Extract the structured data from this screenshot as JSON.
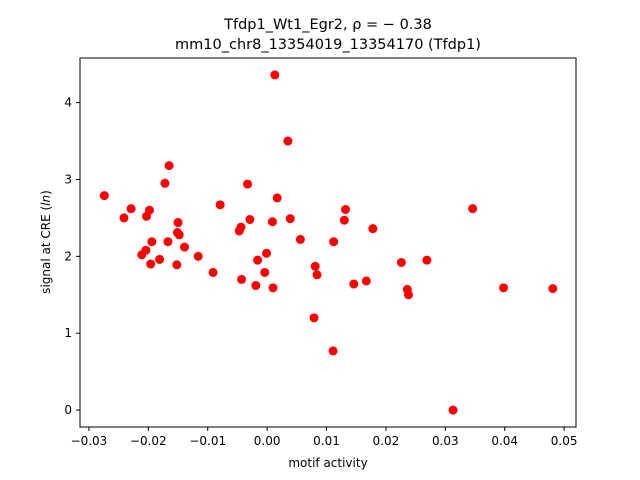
{
  "chart_data": {
    "type": "scatter",
    "title_line1": "Tfdp1_Wt1_Egr2, ρ = − 0.38",
    "title_line2": "mm10_chr8_13354019_13354170 (Tfdp1)",
    "xlabel": "motif activity",
    "ylabel_prefix": "signal at CRE (",
    "ylabel_italic": "ln",
    "ylabel_suffix": ")",
    "xlim": [
      -0.0315,
      0.052
    ],
    "ylim": [
      -0.22,
      4.58
    ],
    "xticks": [
      -0.03,
      -0.02,
      -0.01,
      0.0,
      0.01,
      0.02,
      0.03,
      0.04,
      0.05
    ],
    "xtick_labels": [
      "−0.03",
      "−0.02",
      "−0.01",
      "0.00",
      "0.01",
      "0.02",
      "0.03",
      "0.04",
      "0.05"
    ],
    "yticks": [
      0,
      1,
      2,
      3,
      4
    ],
    "ytick_labels": [
      "0",
      "1",
      "2",
      "3",
      "4"
    ],
    "grid": false,
    "marker_color": "#ff0000",
    "points": [
      {
        "x": -0.0274,
        "y": 2.79
      },
      {
        "x": -0.0241,
        "y": 2.5
      },
      {
        "x": -0.0229,
        "y": 2.62
      },
      {
        "x": -0.0211,
        "y": 2.02
      },
      {
        "x": -0.0204,
        "y": 2.08
      },
      {
        "x": -0.0203,
        "y": 2.52
      },
      {
        "x": -0.0198,
        "y": 2.6
      },
      {
        "x": -0.0196,
        "y": 1.9
      },
      {
        "x": -0.0194,
        "y": 2.19
      },
      {
        "x": -0.0181,
        "y": 1.96
      },
      {
        "x": -0.0172,
        "y": 2.95
      },
      {
        "x": -0.0167,
        "y": 2.19
      },
      {
        "x": -0.0165,
        "y": 3.18
      },
      {
        "x": -0.0152,
        "y": 1.89
      },
      {
        "x": -0.0151,
        "y": 2.31
      },
      {
        "x": -0.015,
        "y": 2.44
      },
      {
        "x": -0.0148,
        "y": 2.28
      },
      {
        "x": -0.0139,
        "y": 2.12
      },
      {
        "x": -0.0116,
        "y": 2.0
      },
      {
        "x": -0.0091,
        "y": 1.79
      },
      {
        "x": -0.0079,
        "y": 2.67
      },
      {
        "x": -0.0047,
        "y": 2.33
      },
      {
        "x": -0.0044,
        "y": 2.38
      },
      {
        "x": -0.0043,
        "y": 1.7
      },
      {
        "x": -0.0033,
        "y": 2.94
      },
      {
        "x": -0.0029,
        "y": 2.48
      },
      {
        "x": -0.0019,
        "y": 1.62
      },
      {
        "x": -0.0016,
        "y": 1.95
      },
      {
        "x": -0.0004,
        "y": 1.79
      },
      {
        "x": -0.0001,
        "y": 2.04
      },
      {
        "x": 0.0009,
        "y": 2.45
      },
      {
        "x": 0.001,
        "y": 1.59
      },
      {
        "x": 0.0013,
        "y": 4.36
      },
      {
        "x": 0.0017,
        "y": 2.76
      },
      {
        "x": 0.0035,
        "y": 3.5
      },
      {
        "x": 0.0039,
        "y": 2.49
      },
      {
        "x": 0.0056,
        "y": 2.22
      },
      {
        "x": 0.0079,
        "y": 1.2
      },
      {
        "x": 0.0081,
        "y": 1.87
      },
      {
        "x": 0.0084,
        "y": 1.76
      },
      {
        "x": 0.0111,
        "y": 0.77
      },
      {
        "x": 0.0112,
        "y": 2.19
      },
      {
        "x": 0.013,
        "y": 2.47
      },
      {
        "x": 0.0132,
        "y": 2.61
      },
      {
        "x": 0.0146,
        "y": 1.64
      },
      {
        "x": 0.0167,
        "y": 1.68
      },
      {
        "x": 0.0178,
        "y": 2.36
      },
      {
        "x": 0.0226,
        "y": 1.92
      },
      {
        "x": 0.0236,
        "y": 1.57
      },
      {
        "x": 0.0238,
        "y": 1.5
      },
      {
        "x": 0.0269,
        "y": 1.95
      },
      {
        "x": 0.0313,
        "y": 0.0
      },
      {
        "x": 0.0346,
        "y": 2.62
      },
      {
        "x": 0.0398,
        "y": 1.59
      },
      {
        "x": 0.0481,
        "y": 1.58
      }
    ]
  }
}
